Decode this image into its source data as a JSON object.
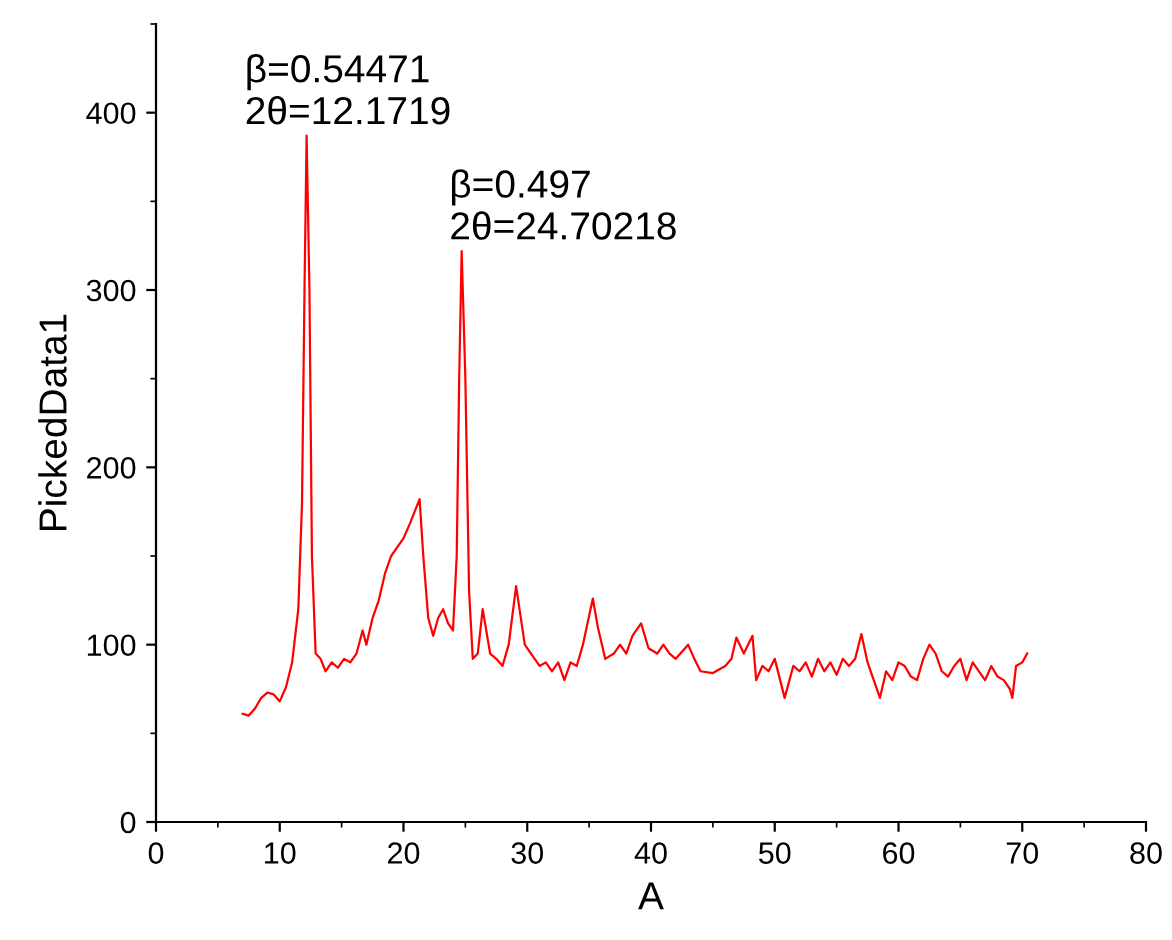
{
  "chart_data": {
    "type": "line",
    "xlabel": "A",
    "ylabel": "PickedData1",
    "x": [
      7.0,
      7.5,
      8,
      8.5,
      9,
      9.5,
      10,
      10.5,
      11,
      11.5,
      11.8,
      12.0,
      12.17,
      12.4,
      12.6,
      12.9,
      13.3,
      13.7,
      14.2,
      14.7,
      15.2,
      15.7,
      16.2,
      16.7,
      17.0,
      17.5,
      18.0,
      18.5,
      19.0,
      19.5,
      20.0,
      20.5,
      21.3,
      21.6,
      22.0,
      22.4,
      22.8,
      23.2,
      23.6,
      24.0,
      24.3,
      24.5,
      24.7,
      25.0,
      25.3,
      25.6,
      26.0,
      26.4,
      27.0,
      27.5,
      28.0,
      28.5,
      29.1,
      29.8,
      30.3,
      31,
      31.5,
      32,
      32.5,
      33,
      33.5,
      34,
      34.5,
      35.3,
      35.7,
      36.3,
      37,
      37.5,
      38,
      38.5,
      39.2,
      39.8,
      40.5,
      41,
      41.5,
      42,
      43,
      43.5,
      44,
      45,
      46,
      46.5,
      46.9,
      47.5,
      48.2,
      48.5,
      49,
      49.5,
      50,
      50.8,
      51.5,
      52,
      52.5,
      53,
      53.5,
      54,
      54.5,
      55,
      55.5,
      56,
      56.5,
      57,
      57.5,
      58,
      58.5,
      59,
      59.5,
      60,
      60.5,
      61,
      61.5,
      62,
      62.5,
      63,
      63.5,
      64,
      64.5,
      65,
      65.5,
      66,
      66.5,
      67,
      67.5,
      68,
      68.5,
      69,
      69.2,
      69.5,
      70,
      70.4
    ],
    "values": [
      61,
      60,
      64,
      70,
      73,
      72,
      68,
      76,
      90,
      120,
      180,
      300,
      387,
      300,
      150,
      95,
      92,
      85,
      90,
      87,
      92,
      90,
      95,
      108,
      100,
      115,
      125,
      140,
      150,
      155,
      160,
      168,
      182,
      150,
      115,
      105,
      115,
      120,
      112,
      108,
      150,
      250,
      322,
      250,
      130,
      92,
      95,
      120,
      95,
      92,
      88,
      100,
      133,
      100,
      95,
      88,
      90,
      85,
      90,
      80,
      90,
      88,
      100,
      126,
      110,
      92,
      95,
      100,
      95,
      105,
      112,
      98,
      95,
      100,
      95,
      92,
      100,
      92,
      85,
      84,
      88,
      92,
      104,
      95,
      105,
      80,
      88,
      85,
      92,
      70,
      88,
      85,
      90,
      82,
      92,
      85,
      90,
      83,
      92,
      88,
      92,
      106,
      90,
      80,
      70,
      85,
      80,
      90,
      88,
      82,
      80,
      92,
      100,
      95,
      85,
      82,
      88,
      92,
      80,
      90,
      85,
      80,
      88,
      82,
      80,
      75,
      70,
      88,
      90,
      95
    ],
    "color": "#ff0000",
    "marker": "none",
    "line_style": "solid",
    "grid": false,
    "legend": false,
    "xlim": [
      0,
      80
    ],
    "xticks": [
      0,
      10,
      20,
      30,
      40,
      50,
      60,
      70,
      80
    ],
    "ylim": [
      0,
      450
    ],
    "yticks": [
      0,
      100,
      200,
      300,
      400
    ],
    "annotations": [
      {
        "text": "β=0.54471\n2θ=12.1719",
        "x": 12.17,
        "y": 387
      },
      {
        "text": "β=0.497\n2θ=24.70218",
        "x": 24.7,
        "y": 322
      }
    ]
  }
}
